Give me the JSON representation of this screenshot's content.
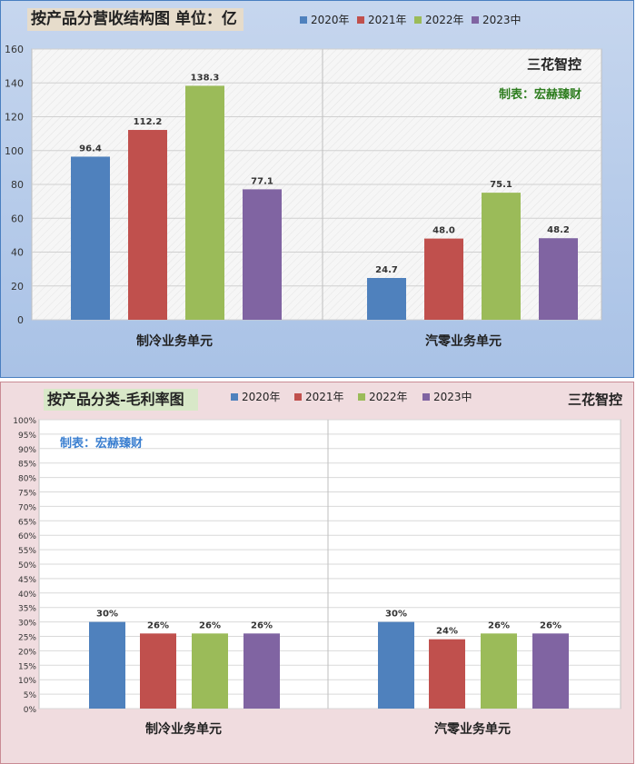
{
  "colors": {
    "2020年": "#4f81bd",
    "2021年": "#c0504d",
    "2022年": "#9bbb59",
    "2023中": "#8064a2"
  },
  "chart_data": [
    {
      "type": "bar",
      "title": "按产品分营收结构图 单位：亿",
      "categories": [
        "制冷业务单元",
        "汽零业务单元"
      ],
      "series": [
        {
          "name": "2020年",
          "values": [
            96.4,
            24.7
          ]
        },
        {
          "name": "2021年",
          "values": [
            112.2,
            48.0
          ]
        },
        {
          "name": "2022年",
          "values": [
            138.3,
            75.1
          ]
        },
        {
          "name": "2023中",
          "values": [
            77.1,
            48.2
          ]
        }
      ],
      "value_labels": [
        [
          "96.4",
          "24.7"
        ],
        [
          "112.2",
          "48.0"
        ],
        [
          "138.3",
          "75.1"
        ],
        [
          "77.1",
          "48.2"
        ]
      ],
      "ylim": [
        0,
        160
      ],
      "yticks": [
        0,
        20,
        40,
        60,
        80,
        100,
        120,
        140,
        160
      ],
      "ytick_labels": [
        "0",
        "20",
        "40",
        "60",
        "80",
        "100",
        "120",
        "140",
        "160"
      ],
      "legend_position": "top",
      "annotations": [
        "三花智控",
        "制表：宏赫臻财"
      ],
      "grid": true
    },
    {
      "type": "bar",
      "title": "按产品分类-毛利率图",
      "categories": [
        "制冷业务单元",
        "汽零业务单元"
      ],
      "series": [
        {
          "name": "2020年",
          "values": [
            30,
            30
          ]
        },
        {
          "name": "2021年",
          "values": [
            26,
            24
          ]
        },
        {
          "name": "2022年",
          "values": [
            26,
            26
          ]
        },
        {
          "name": "2023中",
          "values": [
            26,
            26
          ]
        }
      ],
      "value_labels": [
        [
          "30%",
          "30%"
        ],
        [
          "26%",
          "24%"
        ],
        [
          "26%",
          "26%"
        ],
        [
          "26%",
          "26%"
        ]
      ],
      "ylim": [
        0,
        100
      ],
      "yticks": [
        0,
        5,
        10,
        15,
        20,
        25,
        30,
        35,
        40,
        45,
        50,
        55,
        60,
        65,
        70,
        75,
        80,
        85,
        90,
        95,
        100
      ],
      "ytick_labels": [
        "0%",
        "5%",
        "10%",
        "15%",
        "20%",
        "25%",
        "30%",
        "35%",
        "40%",
        "45%",
        "50%",
        "55%",
        "60%",
        "65%",
        "70%",
        "75%",
        "80%",
        "85%",
        "90%",
        "95%",
        "100%"
      ],
      "legend_position": "top",
      "annotations": [
        "三花智控",
        "制表：宏赫臻财"
      ],
      "grid": true
    }
  ]
}
